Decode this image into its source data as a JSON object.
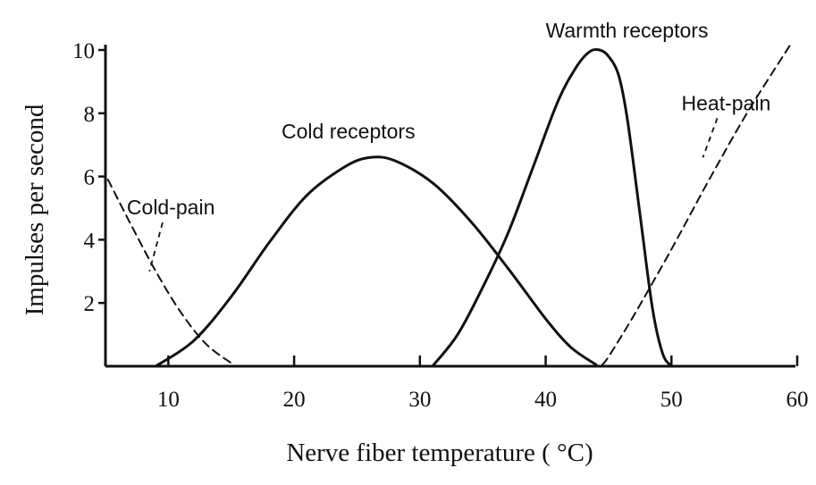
{
  "chart_data": {
    "type": "line",
    "title": "",
    "xlabel": "Nerve fiber temperature ( °C)",
    "ylabel": "Impulses per second",
    "xlim": [
      5,
      60
    ],
    "ylim": [
      0,
      10
    ],
    "x_ticks": [
      10,
      20,
      30,
      40,
      50,
      60
    ],
    "y_ticks": [
      2,
      4,
      6,
      8,
      10
    ],
    "grid": false,
    "series": [
      {
        "name": "Cold-pain",
        "style": "dashed",
        "x": [
          5.2,
          7,
          9,
          11,
          13,
          15
        ],
        "y": [
          5.9,
          4.5,
          3.0,
          1.7,
          0.7,
          0.1
        ]
      },
      {
        "name": "Cold receptors",
        "style": "solid",
        "x": [
          9,
          12,
          15,
          18,
          21,
          24,
          26,
          28,
          31,
          34,
          37,
          40,
          42,
          44
        ],
        "y": [
          0,
          0.8,
          2.2,
          3.9,
          5.4,
          6.3,
          6.6,
          6.5,
          5.8,
          4.6,
          3.1,
          1.5,
          0.6,
          0.05
        ]
      },
      {
        "name": "Warmth receptors",
        "style": "solid",
        "x": [
          31,
          33,
          35,
          37,
          39,
          41,
          42.5,
          43.5,
          44.3,
          45,
          45.8,
          46.5,
          47.5,
          48.5,
          49.3,
          50
        ],
        "y": [
          0,
          1.0,
          2.5,
          4.2,
          6.3,
          8.4,
          9.5,
          9.95,
          10,
          9.8,
          9.2,
          7.8,
          4.8,
          1.8,
          0.4,
          0
        ]
      },
      {
        "name": "Heat-pain",
        "style": "dashed",
        "x": [
          44.5,
          45,
          47,
          50,
          53,
          56,
          59.5
        ],
        "y": [
          0.05,
          0.3,
          1.6,
          3.7,
          5.9,
          8.0,
          10.2
        ]
      }
    ],
    "annotations": [
      {
        "text": "Cold-pain",
        "x": 6.7,
        "y": 4.8,
        "points_to": [
          8.5,
          3.0
        ]
      },
      {
        "text": "Cold receptors",
        "x": 19,
        "y": 7.2
      },
      {
        "text": "Warmth receptors",
        "x": 40,
        "y": 10.4
      },
      {
        "text": "Heat-pain",
        "x": 50.8,
        "y": 8.1,
        "points_to": [
          52.5,
          6.6
        ]
      }
    ]
  }
}
